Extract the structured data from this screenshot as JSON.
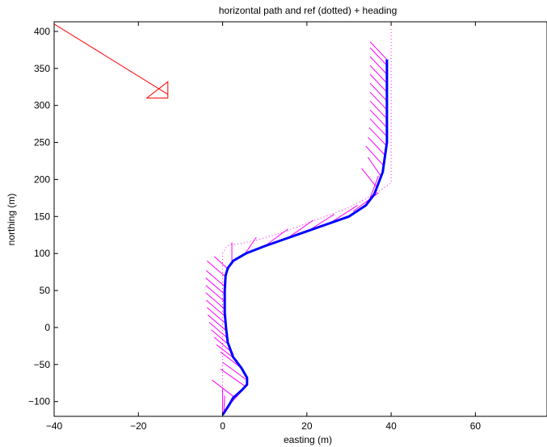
{
  "chart_data": {
    "type": "line",
    "title": "horizontal path and ref (dotted) + heading",
    "xlabel": "easting (m)",
    "ylabel": "northing (m)",
    "xlim": [
      -40,
      77
    ],
    "ylim": [
      -120,
      413
    ],
    "xticks": [
      -40,
      -20,
      0,
      20,
      40,
      60
    ],
    "yticks": [
      -100,
      -50,
      0,
      50,
      100,
      150,
      200,
      250,
      300,
      350,
      400
    ],
    "grid": false,
    "legend": "none",
    "colors": {
      "path": "#0000ff",
      "ref": "#ff00ff",
      "heading": "#ff00ff",
      "wind": "#ff0000"
    },
    "series": [
      {
        "style": "solid-thick",
        "x": [
          0,
          1.5,
          2.5,
          4.5,
          5.8,
          5.8,
          4.5,
          2.5,
          1.2,
          0.8,
          0.5,
          0.5,
          0.7,
          1.2,
          2.5,
          5.5,
          10,
          16,
          23,
          30,
          34,
          36,
          37,
          38,
          38.5,
          39,
          39,
          39,
          39
        ],
        "y": [
          -118,
          -105,
          -95,
          -85,
          -77,
          -68,
          -55,
          -40,
          -20,
          0,
          20,
          50,
          70,
          80,
          90,
          100,
          110,
          122,
          136,
          150,
          165,
          180,
          195,
          210,
          230,
          250,
          290,
          330,
          362
        ]
      },
      {
        "style": "dotted",
        "x": [
          0,
          0,
          0,
          0,
          0,
          1,
          2,
          4,
          8,
          14,
          22,
          30,
          36,
          40,
          40,
          40,
          40
        ],
        "y": [
          -118,
          -60,
          0,
          60,
          100,
          110,
          112,
          113,
          118,
          128,
          145,
          162,
          180,
          195,
          230,
          300,
          405
        ]
      }
    ],
    "heading_marks": [
      {
        "x": 0,
        "y": -118,
        "dx": 0,
        "dy": 35
      },
      {
        "x": 0.3,
        "y": -112,
        "dx": 0.2,
        "dy": 20
      },
      {
        "x": 1,
        "y": -108,
        "dx": 4,
        "dy": 25
      },
      {
        "x": 3,
        "y": -95,
        "dx": -5.5,
        "dy": 24
      },
      {
        "x": 5.5,
        "y": -80,
        "dx": -6,
        "dy": 24
      },
      {
        "x": 5.5,
        "y": -70,
        "dx": -5.5,
        "dy": 23
      },
      {
        "x": 4.5,
        "y": -55,
        "dx": -5,
        "dy": 22
      },
      {
        "x": 3.5,
        "y": -45,
        "dx": -5,
        "dy": 22
      },
      {
        "x": 2.5,
        "y": -35,
        "dx": -4.5,
        "dy": 22
      },
      {
        "x": 1.8,
        "y": -25,
        "dx": -4.5,
        "dy": 22
      },
      {
        "x": 1.3,
        "y": -15,
        "dx": -4.5,
        "dy": 22
      },
      {
        "x": 1,
        "y": -5,
        "dx": -4.5,
        "dy": 22
      },
      {
        "x": 0.8,
        "y": 5,
        "dx": -4.5,
        "dy": 22
      },
      {
        "x": 0.6,
        "y": 15,
        "dx": -4.5,
        "dy": 22
      },
      {
        "x": 0.5,
        "y": 25,
        "dx": -4.5,
        "dy": 22
      },
      {
        "x": 0.5,
        "y": 35,
        "dx": -4.5,
        "dy": 22
      },
      {
        "x": 0.5,
        "y": 45,
        "dx": -4.5,
        "dy": 22
      },
      {
        "x": 0.6,
        "y": 55,
        "dx": -4.5,
        "dy": 22
      },
      {
        "x": 0.8,
        "y": 68,
        "dx": -4.5,
        "dy": 22
      },
      {
        "x": 1.5,
        "y": 78,
        "dx": -3.5,
        "dy": 18
      },
      {
        "x": 2.2,
        "y": 85,
        "dx": 0,
        "dy": 30
      },
      {
        "x": 5,
        "y": 97,
        "dx": 3,
        "dy": 25
      },
      {
        "x": 10,
        "y": 110,
        "dx": 5.5,
        "dy": 23
      },
      {
        "x": 16,
        "y": 123,
        "dx": 5.5,
        "dy": 22
      },
      {
        "x": 21,
        "y": 133,
        "dx": 5.5,
        "dy": 20
      },
      {
        "x": 26,
        "y": 143,
        "dx": 6,
        "dy": 22
      },
      {
        "x": 31,
        "y": 157,
        "dx": 6,
        "dy": 25
      },
      {
        "x": 35,
        "y": 175,
        "dx": 2,
        "dy": 30
      },
      {
        "x": 36.5,
        "y": 190,
        "dx": -3.5,
        "dy": 25
      },
      {
        "x": 37.5,
        "y": 205,
        "dx": -3,
        "dy": 25
      },
      {
        "x": 38,
        "y": 220,
        "dx": -4,
        "dy": 25
      },
      {
        "x": 38.5,
        "y": 233,
        "dx": -4,
        "dy": 24
      },
      {
        "x": 38.8,
        "y": 246,
        "dx": -4,
        "dy": 24
      },
      {
        "x": 39,
        "y": 258,
        "dx": -4,
        "dy": 24
      },
      {
        "x": 39,
        "y": 270,
        "dx": -4,
        "dy": 24
      },
      {
        "x": 39,
        "y": 282,
        "dx": -4,
        "dy": 24
      },
      {
        "x": 39,
        "y": 294,
        "dx": -4,
        "dy": 24
      },
      {
        "x": 39,
        "y": 306,
        "dx": -4,
        "dy": 24
      },
      {
        "x": 39,
        "y": 318,
        "dx": -4,
        "dy": 24
      },
      {
        "x": 39,
        "y": 330,
        "dx": -4,
        "dy": 24
      },
      {
        "x": 39,
        "y": 342,
        "dx": -4,
        "dy": 24
      },
      {
        "x": 39,
        "y": 354,
        "dx": -4,
        "dy": 24
      },
      {
        "x": 39,
        "y": 362,
        "dx": -4,
        "dy": 24
      }
    ],
    "wind_arrow": {
      "from": [
        -40,
        410
      ],
      "to": [
        -13,
        315
      ],
      "head": [
        [
          -13,
          332
        ],
        [
          -18,
          310
        ],
        [
          -13,
          310
        ]
      ]
    }
  }
}
